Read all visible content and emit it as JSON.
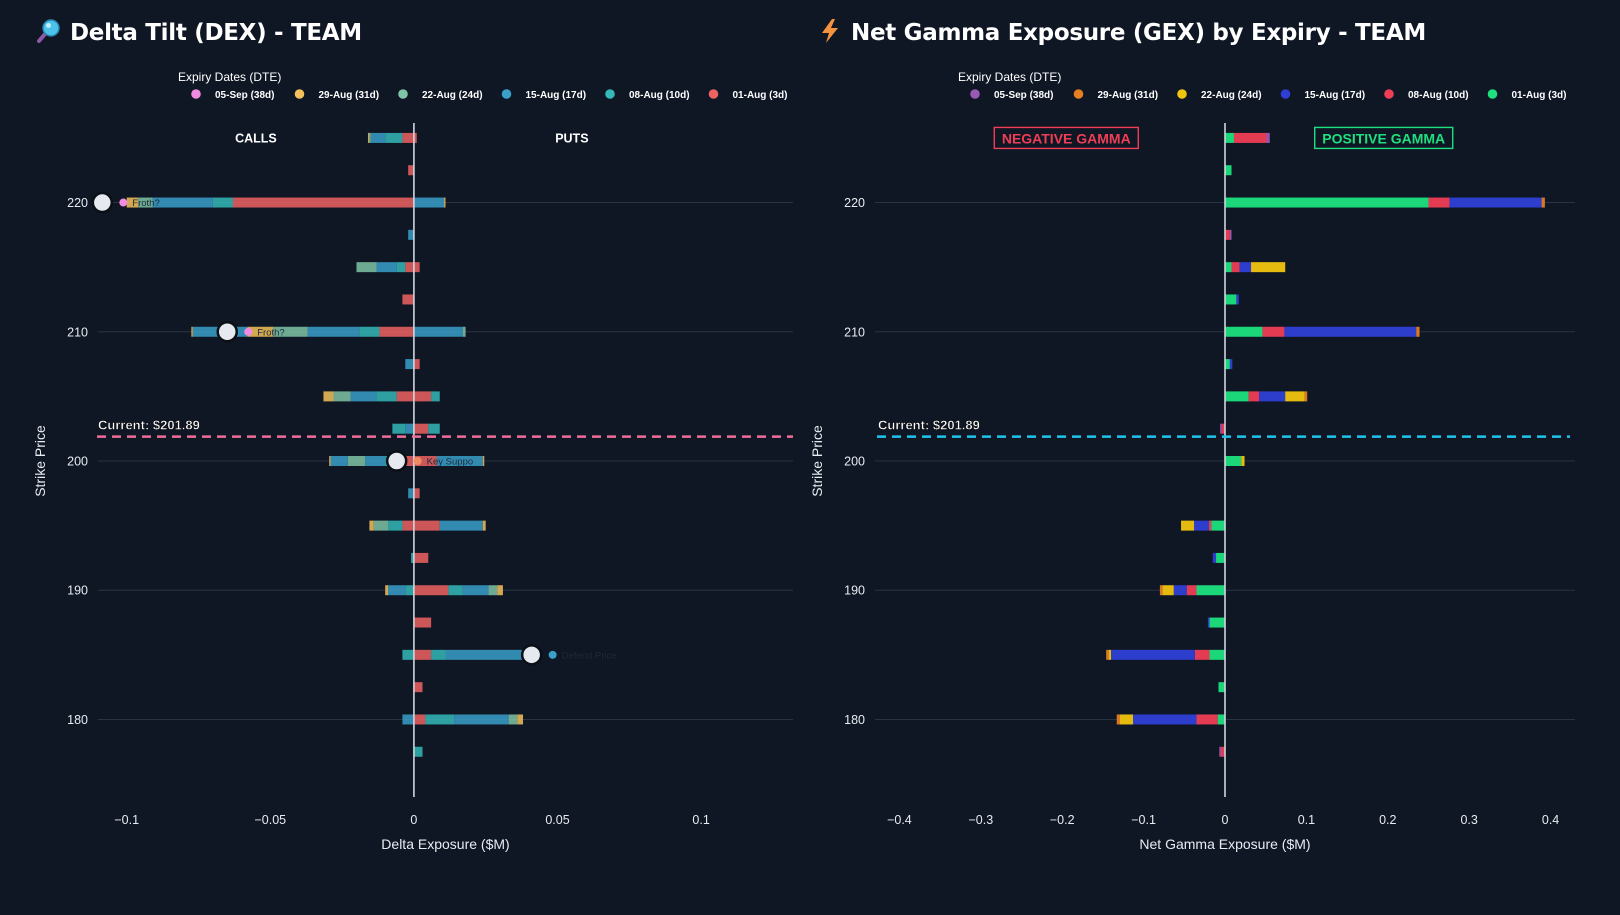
{
  "chart_data": [
    {
      "type": "bar",
      "id": "dex",
      "title": "Delta Tilt (DEX) - TEAM",
      "title_icon": "magnifier-icon",
      "xlabel": "Delta Exposure ($M)",
      "ylabel": "Strike Price",
      "xlim": [
        -0.11,
        0.132
      ],
      "ylim": [
        174,
        226
      ],
      "xticks": [
        {
          "v": -0.1,
          "t": "−0.1"
        },
        {
          "v": -0.05,
          "t": "−0.05"
        },
        {
          "v": 0,
          "t": "0"
        },
        {
          "v": 0.05,
          "t": "0.05"
        },
        {
          "v": 0.1,
          "t": "0.1"
        }
      ],
      "yticks": [
        180,
        190,
        200,
        210,
        220
      ],
      "barmode": "relative",
      "legend_title": "Expiry Dates (DTE)",
      "legend": [
        {
          "name": "05-Sep (38d)",
          "color": "#f08be0"
        },
        {
          "name": "29-Aug (31d)",
          "color": "#f5c15b"
        },
        {
          "name": "22-Aug (24d)",
          "color": "#7fc4a6"
        },
        {
          "name": "15-Aug (17d)",
          "color": "#3a9fc9"
        },
        {
          "name": "08-Aug (10d)",
          "color": "#34b8b8"
        },
        {
          "name": "01-Aug (3d)",
          "color": "#ef6262"
        }
      ],
      "current_price_label": "Current: $201.89",
      "current_price": 201.89,
      "current_line_color": "#ef6f9a",
      "side_labels": {
        "left": "CALLS",
        "right": "PUTS",
        "left_x": -0.055,
        "right_x": 0.055,
        "y": 225
      },
      "strikes": [
        {
          "k": 225,
          "seg": [
            [
              -0.004,
              "#ef6262"
            ],
            [
              -0.006,
              "#34b8b8"
            ],
            [
              -0.005,
              "#3a9fc9"
            ],
            [
              -0.0006,
              "#7fc4a6"
            ],
            [
              -0.0004,
              "#f5c15b"
            ],
            [
              0.001,
              "#ef6262"
            ]
          ]
        },
        {
          "k": 222.5,
          "seg": [
            [
              -0.002,
              "#ef6262"
            ]
          ]
        },
        {
          "k": 220,
          "seg": [
            [
              -0.063,
              "#ef6262"
            ],
            [
              -0.007,
              "#34b8b8"
            ],
            [
              -0.021,
              "#3a9fc9"
            ],
            [
              -0.005,
              "#7fc4a6"
            ],
            [
              -0.004,
              "#f5c15b"
            ],
            [
              0.0105,
              "#3a9fc9"
            ],
            [
              0.0005,
              "#f5c15b"
            ]
          ]
        },
        {
          "k": 217.5,
          "seg": [
            [
              -0.002,
              "#3a9fc9"
            ]
          ]
        },
        {
          "k": 215,
          "seg": [
            [
              -0.003,
              "#ef6262"
            ],
            [
              -0.003,
              "#34b8b8"
            ],
            [
              -0.007,
              "#3a9fc9"
            ],
            [
              -0.007,
              "#7fc4a6"
            ],
            [
              0.002,
              "#ef6262"
            ]
          ]
        },
        {
          "k": 212.5,
          "seg": [
            [
              -0.004,
              "#ef6262"
            ]
          ]
        },
        {
          "k": 210,
          "seg": [
            [
              -0.012,
              "#ef6262"
            ],
            [
              -0.007,
              "#34b8b8"
            ],
            [
              -0.018,
              "#3a9fc9"
            ],
            [
              -0.012,
              "#7fc4a6"
            ],
            [
              -0.009,
              "#f5c15b"
            ],
            [
              -0.019,
              "#3a9fc9"
            ],
            [
              -0.0005,
              "#f5c15b"
            ],
            [
              0.017,
              "#3a9fc9"
            ],
            [
              0.001,
              "#7fc4a6"
            ]
          ]
        },
        {
          "k": 207.5,
          "seg": [
            [
              -0.003,
              "#3a9fc9"
            ],
            [
              0.002,
              "#ef6262"
            ]
          ]
        },
        {
          "k": 205,
          "seg": [
            [
              -0.006,
              "#ef6262"
            ],
            [
              -0.007,
              "#34b8b8"
            ],
            [
              -0.009,
              "#3a9fc9"
            ],
            [
              -0.006,
              "#7fc4a6"
            ],
            [
              -0.0035,
              "#f5c15b"
            ],
            [
              0.006,
              "#ef6262"
            ],
            [
              0.003,
              "#34b8b8"
            ]
          ]
        },
        {
          "k": 202.5,
          "seg": [
            [
              -0.003,
              "#3a9fc9"
            ],
            [
              -0.0045,
              "#34b8b8"
            ],
            [
              0.005,
              "#ef6262"
            ],
            [
              0.004,
              "#34b8b8"
            ]
          ]
        },
        {
          "k": 200,
          "seg": [
            [
              -0.006,
              "#ef6262"
            ],
            [
              -0.004,
              "#34b8b8"
            ],
            [
              -0.007,
              "#3a9fc9"
            ],
            [
              -0.006,
              "#7fc4a6"
            ],
            [
              -0.006,
              "#3a9fc9"
            ],
            [
              -0.0005,
              "#f5c15b"
            ],
            [
              0.008,
              "#ef6262"
            ],
            [
              0.016,
              "#3a9fc9"
            ],
            [
              0.0005,
              "#f5c15b"
            ]
          ]
        },
        {
          "k": 197.5,
          "seg": [
            [
              -0.002,
              "#3a9fc9"
            ],
            [
              0.002,
              "#ef6262"
            ]
          ]
        },
        {
          "k": 195,
          "seg": [
            [
              -0.004,
              "#ef6262"
            ],
            [
              -0.005,
              "#34b8b8"
            ],
            [
              -0.005,
              "#7fc4a6"
            ],
            [
              -0.0015,
              "#f5c15b"
            ],
            [
              0.009,
              "#ef6262"
            ],
            [
              0.015,
              "#3a9fc9"
            ],
            [
              0.001,
              "#f5c15b"
            ]
          ]
        },
        {
          "k": 192.5,
          "seg": [
            [
              -0.001,
              "#34b8b8"
            ],
            [
              0.005,
              "#ef6262"
            ]
          ]
        },
        {
          "k": 190,
          "seg": [
            [
              -0.003,
              "#34b8b8"
            ],
            [
              -0.006,
              "#3a9fc9"
            ],
            [
              -0.001,
              "#f5c15b"
            ],
            [
              0.012,
              "#ef6262"
            ],
            [
              0.005,
              "#34b8b8"
            ],
            [
              0.009,
              "#3a9fc9"
            ],
            [
              0.003,
              "#7fc4a6"
            ],
            [
              0.002,
              "#f5c15b"
            ]
          ]
        },
        {
          "k": 187.5,
          "seg": [
            [
              0.006,
              "#ef6262"
            ]
          ]
        },
        {
          "k": 185,
          "seg": [
            [
              -0.004,
              "#34b8b8"
            ],
            [
              0.006,
              "#ef6262"
            ],
            [
              0.005,
              "#34b8b8"
            ],
            [
              0.03,
              "#3a9fc9"
            ]
          ]
        },
        {
          "k": 182.5,
          "seg": [
            [
              0.003,
              "#ef6262"
            ]
          ]
        },
        {
          "k": 180,
          "seg": [
            [
              -0.004,
              "#3a9fc9"
            ],
            [
              0.004,
              "#ef6262"
            ],
            [
              0.01,
              "#34b8b8"
            ],
            [
              0.019,
              "#3a9fc9"
            ],
            [
              0.003,
              "#7fc4a6"
            ],
            [
              0.002,
              "#f5c15b"
            ]
          ]
        },
        {
          "k": 177.5,
          "seg": [
            [
              0.003,
              "#34b8b8"
            ]
          ]
        }
      ],
      "annotations": [
        {
          "k": 220,
          "x": -0.1085,
          "marker": "circle",
          "label": "Froth?",
          "label_color": "#1c2a3a",
          "icon": "flower-icon",
          "icon_color": "#f08be0",
          "label_side": "right"
        },
        {
          "k": 210,
          "x": -0.065,
          "marker": "circle",
          "label": "Froth?",
          "label_color": "#1c2a3a",
          "icon": "flower-icon",
          "icon_color": "#f08be0",
          "label_side": "right"
        },
        {
          "k": 200,
          "x": -0.006,
          "marker": "circle",
          "label": "Key Suppo",
          "label_color": "#1c2a3a",
          "icon": "warning-icon",
          "icon_color": "#ef8a62",
          "label_side": "right"
        },
        {
          "k": 185,
          "x": 0.041,
          "marker": "circle",
          "label": "Defend Price",
          "label_color": "#1c2a3a",
          "icon": "shield-icon",
          "icon_color": "#3a9fc9",
          "label_side": "right"
        }
      ]
    },
    {
      "type": "bar",
      "id": "gex",
      "title": "Net Gamma Exposure (GEX) by Expiry - TEAM",
      "title_icon": "lightning-icon",
      "xlabel": "Net Gamma Exposure ($M)",
      "ylabel": "Strike Price",
      "xlim": [
        -0.43,
        0.43
      ],
      "ylim": [
        174,
        226
      ],
      "xticks": [
        {
          "v": -0.4,
          "t": "−0.4"
        },
        {
          "v": -0.3,
          "t": "−0.3"
        },
        {
          "v": -0.2,
          "t": "−0.2"
        },
        {
          "v": -0.1,
          "t": "−0.1"
        },
        {
          "v": 0,
          "t": "0"
        },
        {
          "v": 0.1,
          "t": "0.1"
        },
        {
          "v": 0.2,
          "t": "0.2"
        },
        {
          "v": 0.3,
          "t": "0.3"
        },
        {
          "v": 0.4,
          "t": "0.4"
        }
      ],
      "yticks": [
        180,
        190,
        200,
        210,
        220
      ],
      "barmode": "relative",
      "legend_title": "Expiry Dates (DTE)",
      "legend": [
        {
          "name": "05-Sep (38d)",
          "color": "#9b59b6"
        },
        {
          "name": "29-Aug (31d)",
          "color": "#e67e22"
        },
        {
          "name": "22-Aug (24d)",
          "color": "#f1c40f"
        },
        {
          "name": "15-Aug (17d)",
          "color": "#2f3fd6"
        },
        {
          "name": "08-Aug (10d)",
          "color": "#ef3e55"
        },
        {
          "name": "01-Aug (3d)",
          "color": "#1ee07f"
        }
      ],
      "current_price_label": "Current: $201.89",
      "current_price": 201.89,
      "current_line_color": "#1ec6ee",
      "side_labels": {
        "left": "NEGATIVE GAMMA",
        "right": "POSITIVE GAMMA",
        "left_x": -0.195,
        "right_x": 0.195,
        "y": 225,
        "left_color": "#ef3e55",
        "right_color": "#1ee07f"
      },
      "strikes": [
        {
          "k": 225,
          "seg": [
            [
              0.011,
              "#1ee07f"
            ],
            [
              0.04,
              "#ef3e55"
            ],
            [
              0.004,
              "#9b59b6"
            ]
          ]
        },
        {
          "k": 222.5,
          "seg": [
            [
              0.008,
              "#1ee07f"
            ]
          ]
        },
        {
          "k": 220,
          "seg": [
            [
              0.25,
              "#1ee07f"
            ],
            [
              0.026,
              "#ef3e55"
            ],
            [
              0.113,
              "#2f3fd6"
            ],
            [
              0.004,
              "#e67e22"
            ]
          ]
        },
        {
          "k": 217.5,
          "seg": [
            [
              0.006,
              "#ef3e55"
            ],
            [
              0.002,
              "#9b59b6"
            ]
          ]
        },
        {
          "k": 215,
          "seg": [
            [
              0.008,
              "#1ee07f"
            ],
            [
              0.01,
              "#ef3e55"
            ],
            [
              0.014,
              "#2f3fd6"
            ],
            [
              0.042,
              "#f1c40f"
            ]
          ]
        },
        {
          "k": 212.5,
          "seg": [
            [
              0.014,
              "#1ee07f"
            ],
            [
              0.003,
              "#2f3fd6"
            ]
          ]
        },
        {
          "k": 210,
          "seg": [
            [
              0.046,
              "#1ee07f"
            ],
            [
              0.027,
              "#ef3e55"
            ],
            [
              0.162,
              "#2f3fd6"
            ],
            [
              0.004,
              "#e67e22"
            ]
          ]
        },
        {
          "k": 207.5,
          "seg": [
            [
              0.006,
              "#1ee07f"
            ],
            [
              0.003,
              "#2f3fd6"
            ]
          ]
        },
        {
          "k": 205,
          "seg": [
            [
              0.029,
              "#1ee07f"
            ],
            [
              0.013,
              "#ef3e55"
            ],
            [
              0.032,
              "#2f3fd6"
            ],
            [
              0.024,
              "#f1c40f"
            ],
            [
              0.003,
              "#e67e22"
            ]
          ]
        },
        {
          "k": 202.5,
          "seg": [
            [
              -0.004,
              "#ef3e55"
            ],
            [
              -0.002,
              "#9b59b6"
            ]
          ]
        },
        {
          "k": 200,
          "seg": [
            [
              0.02,
              "#1ee07f"
            ],
            [
              0.004,
              "#f1c40f"
            ]
          ]
        },
        {
          "k": 195,
          "seg": [
            [
              -0.017,
              "#1ee07f"
            ],
            [
              -0.003,
              "#ef3e55"
            ],
            [
              -0.018,
              "#2f3fd6"
            ],
            [
              -0.016,
              "#f1c40f"
            ]
          ]
        },
        {
          "k": 192.5,
          "seg": [
            [
              -0.011,
              "#1ee07f"
            ],
            [
              -0.004,
              "#2f3fd6"
            ]
          ]
        },
        {
          "k": 190,
          "seg": [
            [
              -0.035,
              "#1ee07f"
            ],
            [
              -0.012,
              "#ef3e55"
            ],
            [
              -0.016,
              "#2f3fd6"
            ],
            [
              -0.014,
              "#f1c40f"
            ],
            [
              -0.003,
              "#e67e22"
            ]
          ]
        },
        {
          "k": 187.5,
          "seg": [
            [
              -0.019,
              "#1ee07f"
            ],
            [
              -0.002,
              "#2f3fd6"
            ]
          ]
        },
        {
          "k": 185,
          "seg": [
            [
              -0.019,
              "#1ee07f"
            ],
            [
              -0.018,
              "#ef3e55"
            ],
            [
              -0.103,
              "#2f3fd6"
            ],
            [
              -0.003,
              "#f1c40f"
            ],
            [
              -0.003,
              "#e67e22"
            ]
          ]
        },
        {
          "k": 182.5,
          "seg": [
            [
              -0.008,
              "#1ee07f"
            ]
          ]
        },
        {
          "k": 180,
          "seg": [
            [
              -0.009,
              "#1ee07f"
            ],
            [
              -0.026,
              "#ef3e55"
            ],
            [
              -0.078,
              "#2f3fd6"
            ],
            [
              -0.016,
              "#f1c40f"
            ],
            [
              -0.004,
              "#e67e22"
            ]
          ]
        },
        {
          "k": 177.5,
          "seg": [
            [
              -0.005,
              "#ef3e55"
            ],
            [
              -0.002,
              "#9b59b6"
            ]
          ]
        }
      ],
      "annotations": []
    }
  ]
}
